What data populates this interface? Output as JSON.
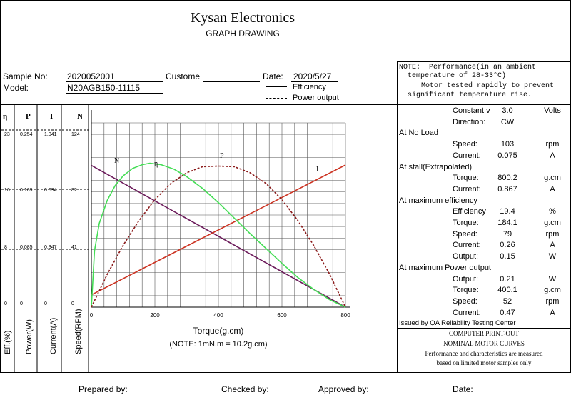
{
  "header": {
    "company": "Kysan Electronics",
    "subtitle": "GRAPH DRAWING"
  },
  "info": {
    "sample_no_label": "Sample No:",
    "sample_no": "2020052001",
    "customer_label": "Custome",
    "date_label": "Date:",
    "date": "2020/5/27",
    "model_label": "Model:",
    "model": "N20AGB150-11115",
    "legend_efficiency": "Efficiency",
    "legend_power": "Power output"
  },
  "note": {
    "label": "NOTE:",
    "line1": "Performance(in an ambient",
    "line2": "temperature of 28-33°C)",
    "line3": "Motor tested rapidly to prevent",
    "line4": "significant temperature rise."
  },
  "specs": [
    {
      "type": "kv",
      "name": "Constant v",
      "value": "3.0",
      "unit": "Volts"
    },
    {
      "type": "kv",
      "name": "Direction:",
      "value": "CW",
      "unit": ""
    },
    {
      "type": "section",
      "name": "At No Load"
    },
    {
      "type": "kv",
      "name": "Speed:",
      "value": "103",
      "unit": "rpm"
    },
    {
      "type": "kv",
      "name": "Current:",
      "value": "0.075",
      "unit": "A"
    },
    {
      "type": "section",
      "name": "At stall(Extrapolated)"
    },
    {
      "type": "kv",
      "name": "Torque:",
      "value": "800.2",
      "unit": "g.cm"
    },
    {
      "type": "kv",
      "name": "Current:",
      "value": "0.867",
      "unit": "A"
    },
    {
      "type": "section",
      "name": "At maximum efficiency"
    },
    {
      "type": "kv",
      "name": "Efficiency",
      "value": "19.4",
      "unit": "%"
    },
    {
      "type": "kv",
      "name": "Torque:",
      "value": "184.1",
      "unit": "g.cm"
    },
    {
      "type": "kv",
      "name": "Speed:",
      "value": "79",
      "unit": "rpm"
    },
    {
      "type": "kv",
      "name": "Current:",
      "value": "0.26",
      "unit": "A"
    },
    {
      "type": "kv",
      "name": "Output:",
      "value": "0.15",
      "unit": "W"
    },
    {
      "type": "section",
      "name": "At maximum Power output"
    },
    {
      "type": "kv",
      "name": "Output:",
      "value": "0.21",
      "unit": "W"
    },
    {
      "type": "kv",
      "name": "Torque:",
      "value": "400.1",
      "unit": "g.cm"
    },
    {
      "type": "kv",
      "name": "Speed:",
      "value": "52",
      "unit": "rpm"
    },
    {
      "type": "kv",
      "name": "Current:",
      "value": "0.47",
      "unit": "A"
    }
  ],
  "issued_by": "Issued by QA Reliability Testing Center",
  "print_note": {
    "line1": "COMPUTER PRINT-OUT",
    "line2": "NOMINAL MOTOR CURVES",
    "line3": "Performance and characteristics are measured",
    "line4": "based on limited motor samples only"
  },
  "footer": {
    "prepared": "Prepared by:",
    "checked": "Checked by:",
    "approved": "Approved by:",
    "date": "Date:"
  },
  "chart_data": {
    "type": "line",
    "xlabel": "Torque(g.cm)",
    "xnote": "(NOTE: 1mN.m = 10.2g.cm)",
    "x_ticks": [
      "0",
      "200",
      "400",
      "600",
      "800"
    ],
    "xlim": [
      0,
      800
    ],
    "axes": [
      {
        "header": "η",
        "label": "Eff.(%)",
        "ticks": [
          "23",
          "16",
          "8",
          "0"
        ]
      },
      {
        "header": "P",
        "label": "Power(W)",
        "ticks": [
          "0.254",
          "0.169",
          "0.085",
          "0"
        ]
      },
      {
        "header": "I",
        "label": "Current(A)",
        "ticks": [
          "1.041",
          "0.694",
          "0.347",
          "0"
        ]
      },
      {
        "header": "N",
        "label": "Speed(RPM)",
        "ticks": [
          "124",
          "82",
          "41",
          "0"
        ]
      }
    ],
    "series": [
      {
        "name": "N",
        "color": "#6b1a5a",
        "style": "solid",
        "points": [
          [
            0,
            103
          ],
          [
            800,
            0
          ]
        ]
      },
      {
        "name": "I",
        "color": "#cc3322",
        "style": "solid",
        "points": [
          [
            0,
            0.075
          ],
          [
            800,
            0.867
          ]
        ]
      },
      {
        "name": "η",
        "color": "#44dd55",
        "style": "solid",
        "points": [
          [
            0,
            0
          ],
          [
            10,
            7.6
          ],
          [
            25,
            11.3
          ],
          [
            50,
            14.4
          ],
          [
            75,
            16.4
          ],
          [
            100,
            17.7
          ],
          [
            130,
            18.7
          ],
          [
            160,
            19.2
          ],
          [
            184,
            19.4
          ],
          [
            220,
            19.2
          ],
          [
            260,
            18.6
          ],
          [
            300,
            17.6
          ],
          [
            350,
            16.0
          ],
          [
            400,
            14.1
          ],
          [
            450,
            12.0
          ],
          [
            500,
            9.9
          ],
          [
            550,
            7.9
          ],
          [
            600,
            5.9
          ],
          [
            650,
            4.0
          ],
          [
            700,
            2.4
          ],
          [
            750,
            1.0
          ],
          [
            800,
            0
          ]
        ]
      },
      {
        "name": "P",
        "color": "#8b1a1a",
        "style": "dashed",
        "points": [
          [
            0,
            0
          ],
          [
            50,
            0.049
          ],
          [
            100,
            0.092
          ],
          [
            150,
            0.129
          ],
          [
            200,
            0.16
          ],
          [
            250,
            0.184
          ],
          [
            300,
            0.2
          ],
          [
            350,
            0.209
          ],
          [
            400,
            0.21
          ],
          [
            450,
            0.209
          ],
          [
            500,
            0.2
          ],
          [
            550,
            0.184
          ],
          [
            600,
            0.16
          ],
          [
            650,
            0.129
          ],
          [
            700,
            0.092
          ],
          [
            750,
            0.049
          ],
          [
            800,
            0
          ]
        ]
      }
    ]
  }
}
